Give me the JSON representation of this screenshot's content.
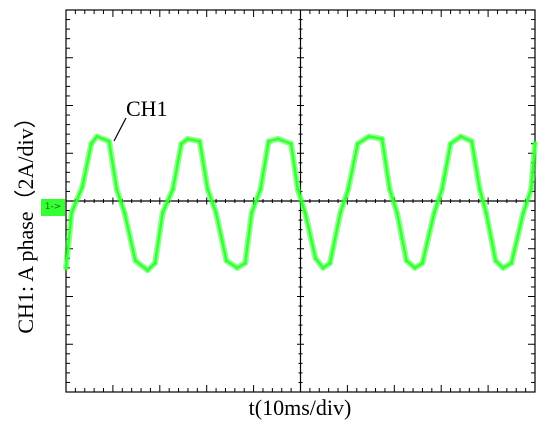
{
  "chart_data": {
    "type": "line",
    "xlabel": "t(10ms/div)",
    "ylabel": "CH1: A  phase（2A/div）",
    "annotation": "CH1",
    "channel_marker": "1->",
    "grid": true,
    "x_divisions": 10,
    "y_divisions": 8,
    "xlim": [
      0,
      100
    ],
    "ylim": [
      -8,
      8
    ],
    "trace_color": "#33ff33",
    "series": [
      {
        "x": [
          0,
          1.2,
          3.5,
          5.4,
          6.6,
          9.2,
          10.8,
          12.5,
          14.8,
          17.4,
          19.0,
          20.6,
          22.8,
          24.6,
          26.0,
          28.5,
          30.2,
          32.0,
          34.2,
          36.5,
          38.2,
          39.6,
          41.5,
          43.2,
          45.2,
          48.0,
          49.4,
          51.0,
          53.2,
          54.8,
          56.3,
          58.5,
          60.2,
          62.2,
          64.6,
          67.4,
          69.0,
          70.6,
          72.6,
          74.4,
          76.0,
          78.5,
          80.2,
          82.0,
          84.2,
          86.5,
          88.2,
          89.6,
          91.6,
          93.2,
          95.0,
          97.5,
          99.2,
          100
        ],
        "y": [
          -2.8,
          -0.5,
          0.6,
          2.4,
          2.7,
          2.5,
          0.5,
          -0.5,
          -2.5,
          -2.9,
          -2.6,
          -0.5,
          0.5,
          2.4,
          2.6,
          2.5,
          0.5,
          -0.5,
          -2.5,
          -2.8,
          -2.6,
          -0.5,
          0.5,
          2.5,
          2.6,
          2.4,
          0.5,
          -0.5,
          -2.4,
          -2.8,
          -2.6,
          -0.5,
          0.5,
          2.4,
          2.7,
          2.6,
          0.5,
          -0.5,
          -2.5,
          -2.8,
          -2.6,
          -0.5,
          0.5,
          2.4,
          2.7,
          2.5,
          0.5,
          -0.5,
          -2.5,
          -2.8,
          -2.6,
          -0.5,
          0.5,
          2.4
        ]
      }
    ]
  }
}
